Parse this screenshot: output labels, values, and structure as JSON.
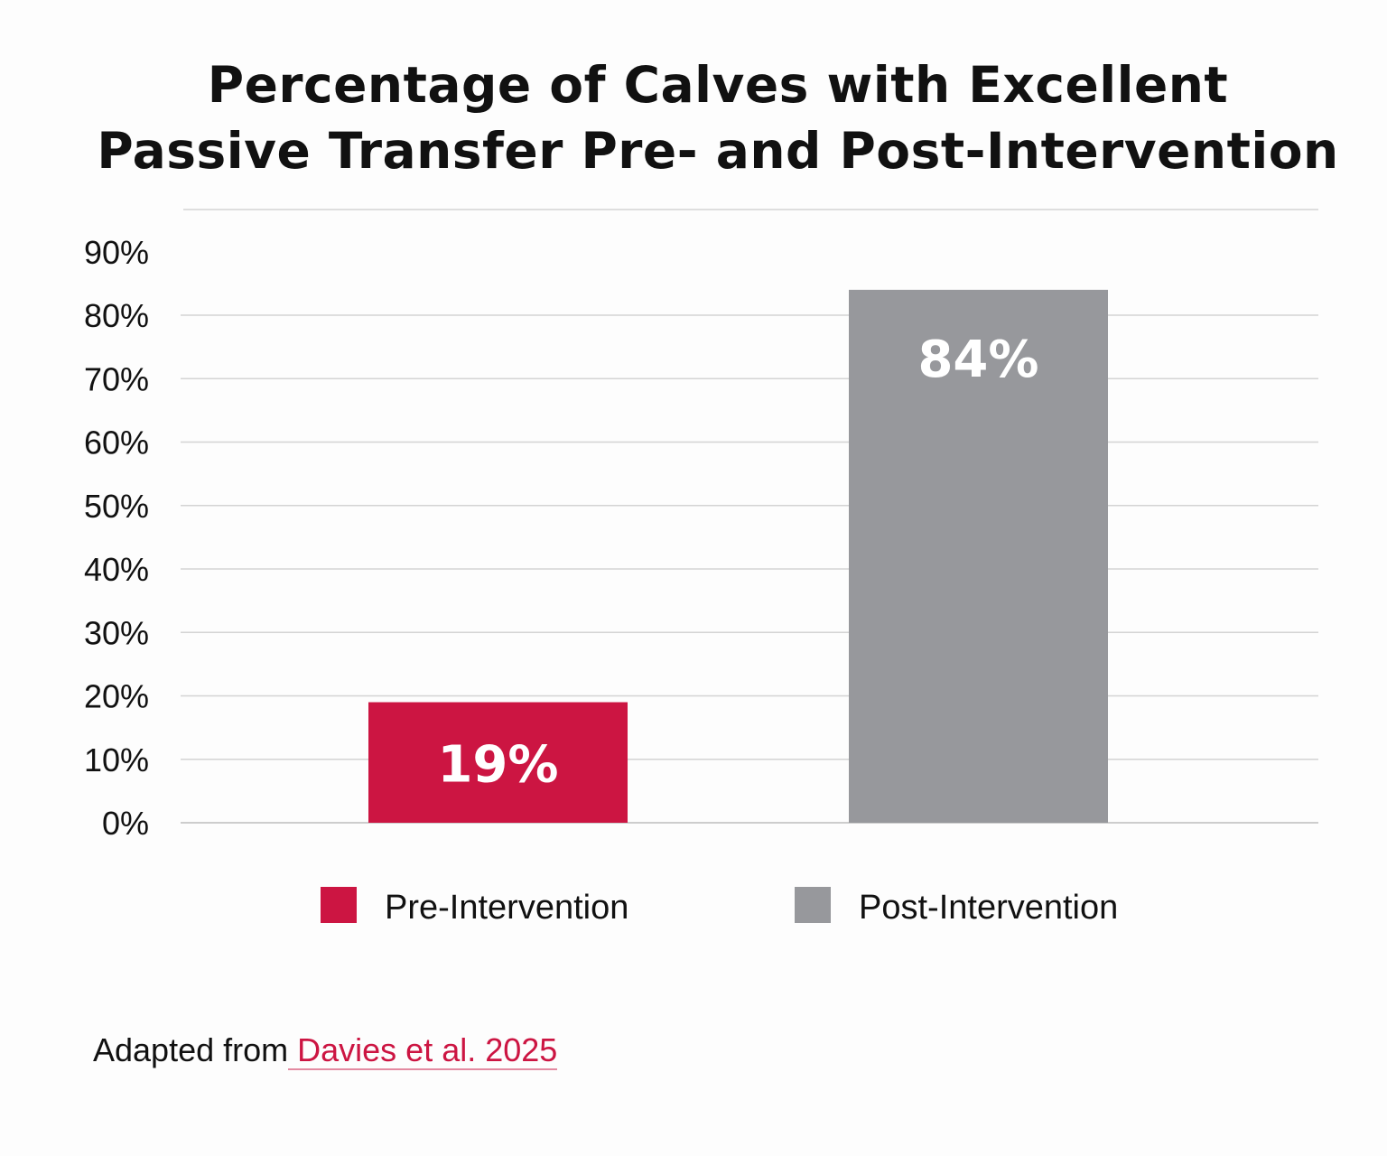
{
  "chart_data": {
    "type": "bar",
    "title": "Percentage of Calves with Excellent Passive Transfer Pre- and Post-Intervention",
    "title_lines": [
      "Percentage of Calves with Excellent",
      "Passive Transfer Pre- and Post-Intervention"
    ],
    "categories": [
      "Pre-Intervention",
      "Post-Intervention"
    ],
    "values": [
      19,
      84
    ],
    "data_labels": [
      "19%",
      "84%"
    ],
    "colors": [
      "#cc1542",
      "#97989c"
    ],
    "xlabel": "",
    "ylabel": "",
    "ylim": [
      0,
      90
    ],
    "yticks": [
      0,
      10,
      20,
      30,
      40,
      50,
      60,
      70,
      80,
      90
    ],
    "ytick_labels": [
      "0%",
      "10%",
      "20%",
      "30%",
      "40%",
      "50%",
      "60%",
      "70%",
      "80%",
      "90%"
    ],
    "grid": true,
    "legend": {
      "placement": "bottom",
      "entries": [
        "Pre-Intervention",
        "Post-Intervention"
      ]
    }
  },
  "source": {
    "prefix": "Adapted from",
    "link_text": " Davies et al. 2025"
  }
}
